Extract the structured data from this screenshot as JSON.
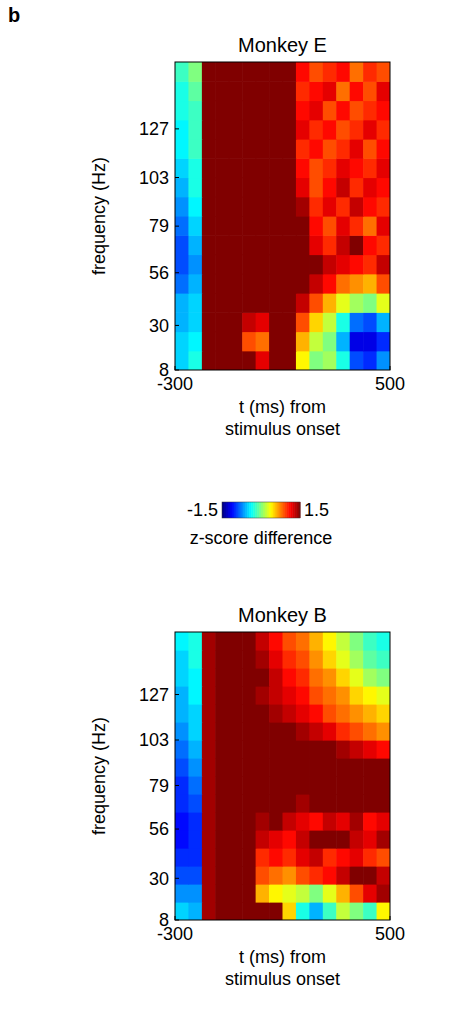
{
  "panel_label": "b",
  "chart_data": [
    {
      "type": "heatmap",
      "title": "Monkey E",
      "x_label": "t (ms) from stimulus onset",
      "y_label": "frequency (Hz)",
      "xlim": [
        -300,
        500
      ],
      "ylim": [
        8,
        160
      ],
      "xticks": [
        -300,
        500
      ],
      "yticks": [
        8,
        30,
        56,
        79,
        103,
        127
      ],
      "x_bins": [
        -300,
        -250,
        -200,
        -150,
        -100,
        -50,
        0,
        50,
        100,
        150,
        200,
        250,
        300,
        350,
        400,
        450,
        500
      ],
      "y_bins": [
        8,
        17.5,
        27,
        36.5,
        46,
        55.5,
        65,
        74.5,
        84,
        93.5,
        103,
        112.5,
        122,
        131.5,
        141,
        150.5,
        160
      ],
      "cells": [
        [
          -0.5,
          -0.3,
          1.6,
          1.8,
          1.8,
          1.5,
          1.2,
          1.6,
          1.6,
          0.4,
          0.0,
          0.1,
          -0.3,
          -0.9,
          -1.0,
          -0.7
        ],
        [
          -0.5,
          -0.4,
          1.6,
          1.8,
          1.8,
          0.9,
          0.8,
          1.6,
          1.5,
          0.6,
          0.2,
          0.0,
          -0.6,
          -1.2,
          -1.2,
          -1.0
        ],
        [
          -0.6,
          -0.5,
          1.6,
          1.8,
          1.8,
          1.3,
          1.2,
          1.7,
          1.6,
          0.9,
          0.5,
          0.2,
          -0.3,
          -0.8,
          -0.9,
          -0.6
        ],
        [
          -0.6,
          -0.5,
          1.6,
          1.8,
          1.8,
          1.8,
          1.8,
          1.8,
          1.7,
          1.3,
          0.9,
          0.6,
          0.3,
          0.1,
          0.0,
          0.3
        ],
        [
          -0.8,
          -0.6,
          1.6,
          1.8,
          1.8,
          1.8,
          1.8,
          1.8,
          1.8,
          1.6,
          1.3,
          1.1,
          0.8,
          0.7,
          0.6,
          0.9
        ],
        [
          -0.9,
          -0.7,
          1.6,
          1.8,
          1.8,
          1.8,
          1.8,
          1.8,
          1.8,
          1.7,
          1.5,
          1.3,
          1.2,
          1.1,
          1.0,
          1.3
        ],
        [
          -0.9,
          -0.6,
          1.6,
          1.8,
          1.8,
          1.8,
          1.8,
          1.8,
          1.8,
          1.6,
          1.2,
          1.0,
          1.3,
          1.5,
          1.1,
          1.0
        ],
        [
          -0.8,
          -0.5,
          1.6,
          1.8,
          1.8,
          1.8,
          1.8,
          1.8,
          1.8,
          1.5,
          1.1,
          0.9,
          1.2,
          1.0,
          0.8,
          1.2
        ],
        [
          -0.7,
          -0.4,
          1.6,
          1.8,
          1.8,
          1.8,
          1.8,
          1.8,
          1.8,
          1.4,
          1.0,
          1.2,
          1.0,
          1.3,
          1.1,
          1.0
        ],
        [
          -0.6,
          -0.3,
          1.6,
          1.8,
          1.8,
          1.8,
          1.8,
          1.8,
          1.8,
          1.2,
          0.9,
          1.1,
          1.3,
          1.0,
          1.2,
          1.1
        ],
        [
          -0.5,
          -0.3,
          1.6,
          1.8,
          1.8,
          1.8,
          1.8,
          1.8,
          1.8,
          1.1,
          0.9,
          1.0,
          1.2,
          1.1,
          1.0,
          1.2
        ],
        [
          -0.4,
          -0.2,
          1.6,
          1.8,
          1.8,
          1.8,
          1.8,
          1.8,
          1.8,
          1.0,
          1.1,
          0.9,
          1.0,
          1.2,
          0.9,
          1.1
        ],
        [
          -0.4,
          -0.2,
          1.6,
          1.8,
          1.8,
          1.8,
          1.8,
          1.8,
          1.8,
          1.2,
          1.0,
          1.1,
          0.9,
          1.0,
          1.2,
          1.0
        ],
        [
          -0.3,
          -0.2,
          1.6,
          1.8,
          1.8,
          1.8,
          1.8,
          1.8,
          1.8,
          1.1,
          1.2,
          0.9,
          1.1,
          0.9,
          1.0,
          1.1
        ],
        [
          -0.3,
          -0.1,
          1.6,
          1.8,
          1.8,
          1.8,
          1.8,
          1.8,
          1.8,
          1.0,
          1.1,
          1.2,
          0.8,
          1.1,
          0.9,
          1.2
        ],
        [
          -0.2,
          0.0,
          1.6,
          1.8,
          1.8,
          1.8,
          1.8,
          1.8,
          1.8,
          1.1,
          0.9,
          1.0,
          1.1,
          0.8,
          1.0,
          0.9
        ]
      ],
      "colorbar": {
        "range": [
          -1.5,
          1.5
        ],
        "ticks": [
          -1.5,
          1.5
        ],
        "label": "z-score difference"
      }
    },
    {
      "type": "heatmap",
      "title": "Monkey B",
      "x_label": "t (ms) from stimulus onset",
      "y_label": "frequency (Hz)",
      "xlim": [
        -300,
        500
      ],
      "ylim": [
        8,
        160
      ],
      "xticks": [
        -300,
        500
      ],
      "yticks": [
        8,
        30,
        56,
        79,
        103,
        127
      ],
      "x_bins": [
        -300,
        -250,
        -200,
        -150,
        -100,
        -50,
        0,
        50,
        100,
        150,
        200,
        250,
        300,
        350,
        400,
        450,
        500
      ],
      "y_bins": [
        8,
        17.5,
        27,
        36.5,
        46,
        55.5,
        65,
        74.5,
        84,
        93.5,
        103,
        112.5,
        122,
        131.5,
        141,
        150.5,
        160
      ],
      "cells": [
        [
          -0.5,
          -0.6,
          1.4,
          1.8,
          1.8,
          1.8,
          1.8,
          1.8,
          0.5,
          -0.3,
          -0.6,
          -0.2,
          0.2,
          0.0,
          -0.2,
          0.4
        ],
        [
          -0.7,
          -0.7,
          1.4,
          1.8,
          1.8,
          1.8,
          0.6,
          0.4,
          0.3,
          0.2,
          0.0,
          0.3,
          0.6,
          0.9,
          1.2,
          1.4
        ],
        [
          -0.9,
          -0.9,
          1.4,
          1.8,
          1.8,
          1.8,
          0.9,
          0.8,
          0.7,
          0.9,
          1.0,
          1.1,
          1.3,
          1.5,
          1.6,
          1.3
        ],
        [
          -1.0,
          -1.0,
          1.4,
          1.8,
          1.8,
          1.8,
          1.0,
          1.1,
          1.0,
          1.2,
          1.3,
          1.0,
          1.1,
          1.2,
          1.0,
          0.9
        ],
        [
          -1.1,
          -1.0,
          1.4,
          1.8,
          1.8,
          1.8,
          1.3,
          1.2,
          1.1,
          1.3,
          1.5,
          1.6,
          1.5,
          1.3,
          1.2,
          1.4
        ],
        [
          -1.1,
          -1.0,
          1.4,
          1.8,
          1.8,
          1.8,
          1.4,
          1.5,
          1.3,
          1.2,
          1.1,
          1.3,
          1.2,
          1.4,
          1.1,
          1.2
        ],
        [
          -1.0,
          -0.9,
          1.4,
          1.8,
          1.8,
          1.8,
          1.6,
          1.5,
          1.6,
          1.4,
          1.5,
          1.6,
          1.6,
          1.5,
          1.6,
          1.5
        ],
        [
          -1.0,
          -0.8,
          1.4,
          1.8,
          1.8,
          1.8,
          1.8,
          1.7,
          1.8,
          1.8,
          1.7,
          1.8,
          1.8,
          1.7,
          1.8,
          1.7
        ],
        [
          -0.9,
          -0.7,
          1.4,
          1.8,
          1.8,
          1.8,
          1.8,
          1.8,
          1.8,
          1.8,
          1.8,
          1.7,
          1.6,
          1.7,
          1.6,
          1.5
        ],
        [
          -0.8,
          -0.6,
          1.4,
          1.8,
          1.8,
          1.8,
          1.8,
          1.8,
          1.7,
          1.8,
          1.6,
          1.5,
          1.4,
          1.3,
          1.2,
          1.1
        ],
        [
          -0.7,
          -0.5,
          1.4,
          1.8,
          1.8,
          1.8,
          1.7,
          1.5,
          1.6,
          1.4,
          1.3,
          1.2,
          1.0,
          0.9,
          0.8,
          0.7
        ],
        [
          -0.6,
          -0.5,
          1.4,
          1.8,
          1.8,
          1.8,
          1.5,
          1.4,
          1.3,
          1.2,
          1.1,
          0.9,
          0.8,
          0.7,
          0.6,
          0.5
        ],
        [
          -0.6,
          -0.4,
          1.4,
          1.8,
          1.8,
          1.8,
          1.4,
          1.3,
          1.2,
          1.1,
          0.9,
          0.8,
          0.7,
          0.5,
          0.4,
          0.3
        ],
        [
          -0.5,
          -0.4,
          1.4,
          1.8,
          1.8,
          1.8,
          1.5,
          1.3,
          1.1,
          1.0,
          0.8,
          0.7,
          0.5,
          0.3,
          0.1,
          0.0
        ],
        [
          -0.5,
          -0.3,
          1.4,
          1.8,
          1.8,
          1.8,
          1.4,
          1.2,
          1.0,
          0.9,
          0.7,
          0.5,
          0.3,
          0.1,
          -0.1,
          -0.2
        ],
        [
          -0.4,
          -0.3,
          1.4,
          1.8,
          1.8,
          1.8,
          1.3,
          1.1,
          0.9,
          0.8,
          0.6,
          0.4,
          0.2,
          0.0,
          -0.2,
          -0.3
        ]
      ]
    }
  ]
}
